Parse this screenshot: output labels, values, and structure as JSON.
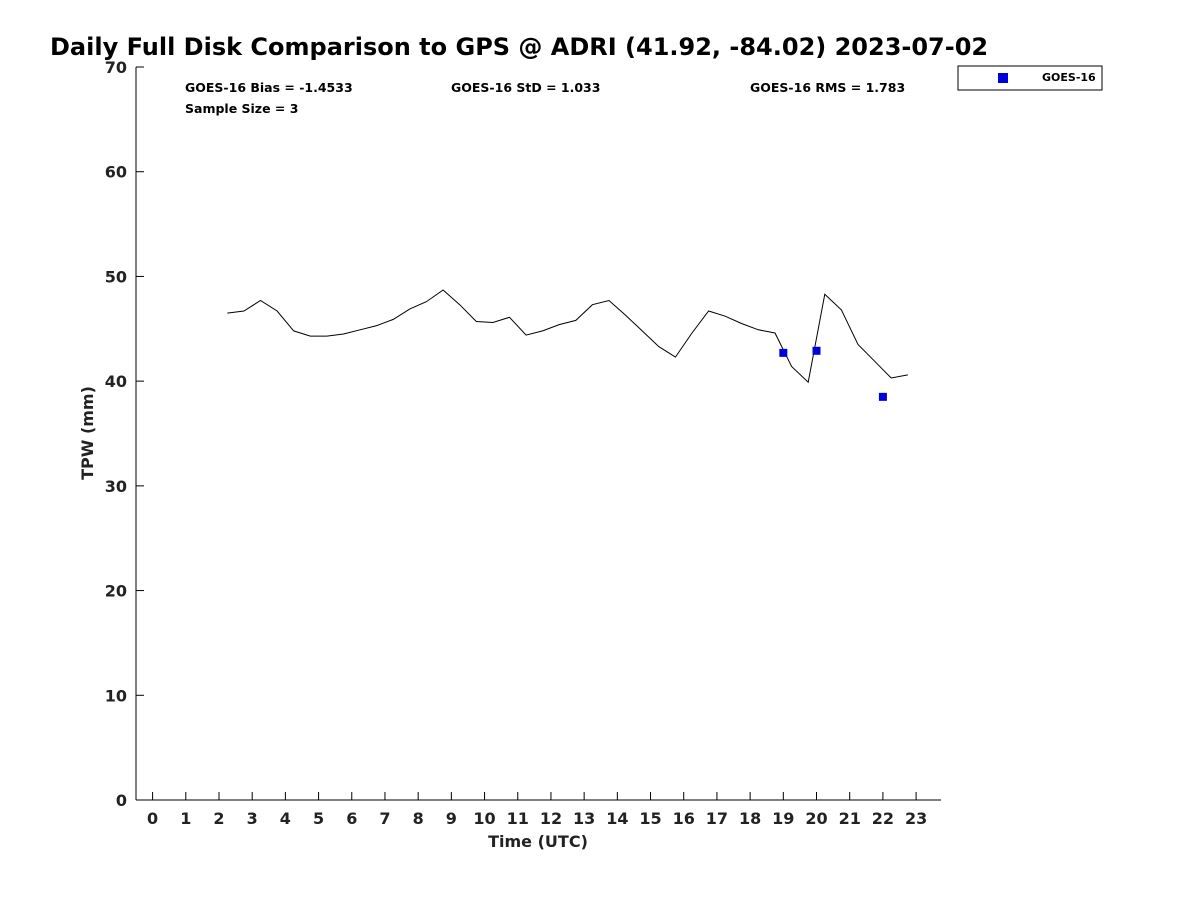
{
  "chart_data": {
    "type": "line",
    "title": "Daily Full Disk Comparison to GPS @ ADRI (41.92, -84.02) 2023-07-02",
    "xlabel": "Time (UTC)",
    "ylabel": "TPW (mm)",
    "xlim": [
      -0.5,
      23.75
    ],
    "ylim": [
      0,
      70
    ],
    "x_ticks": [
      0,
      1,
      2,
      3,
      4,
      5,
      6,
      7,
      8,
      9,
      10,
      11,
      12,
      13,
      14,
      15,
      16,
      17,
      18,
      19,
      20,
      21,
      22,
      23
    ],
    "y_ticks": [
      0,
      10,
      20,
      30,
      40,
      50,
      60,
      70
    ],
    "grid": false,
    "legend_position": "top-right, outside plot",
    "stats": {
      "bias": "GOES-16 Bias = -1.4533",
      "std": "GOES-16 StD = 1.033",
      "rms": "GOES-16 RMS = 1.783",
      "sample": "Sample Size = 3"
    },
    "series": [
      {
        "kind": "line",
        "color": "#000000",
        "x": [
          2.25,
          2.75,
          3.25,
          3.75,
          4.25,
          4.75,
          5.25,
          5.75,
          6.25,
          6.75,
          7.25,
          7.75,
          8.25,
          8.75,
          9.25,
          9.75,
          10.25,
          10.75,
          11.25,
          11.75,
          12.25,
          12.75,
          13.25,
          13.75,
          14.25,
          14.75,
          15.25,
          15.75,
          16.25,
          16.75,
          17.25,
          17.75,
          18.25,
          18.75,
          19.25,
          19.75,
          20.25,
          20.75,
          21.25,
          21.75,
          22.25,
          22.75
        ],
        "y": [
          46.5,
          46.7,
          47.7,
          46.7,
          44.8,
          44.3,
          44.3,
          44.5,
          44.9,
          45.3,
          45.9,
          46.9,
          47.6,
          48.7,
          47.3,
          45.7,
          45.6,
          46.1,
          44.4,
          44.8,
          45.4,
          45.8,
          47.3,
          47.7,
          46.3,
          44.8,
          43.3,
          42.3,
          44.6,
          46.7,
          46.2,
          45.5,
          44.9,
          44.6,
          41.4,
          39.9,
          48.3,
          46.8,
          43.5,
          41.9,
          40.3,
          40.6
        ]
      },
      {
        "kind": "scatter",
        "name": "GOES-16",
        "color": "#0000dd",
        "x": [
          19.0,
          20.0,
          22.0
        ],
        "y": [
          42.7,
          42.9,
          38.5
        ]
      }
    ]
  }
}
